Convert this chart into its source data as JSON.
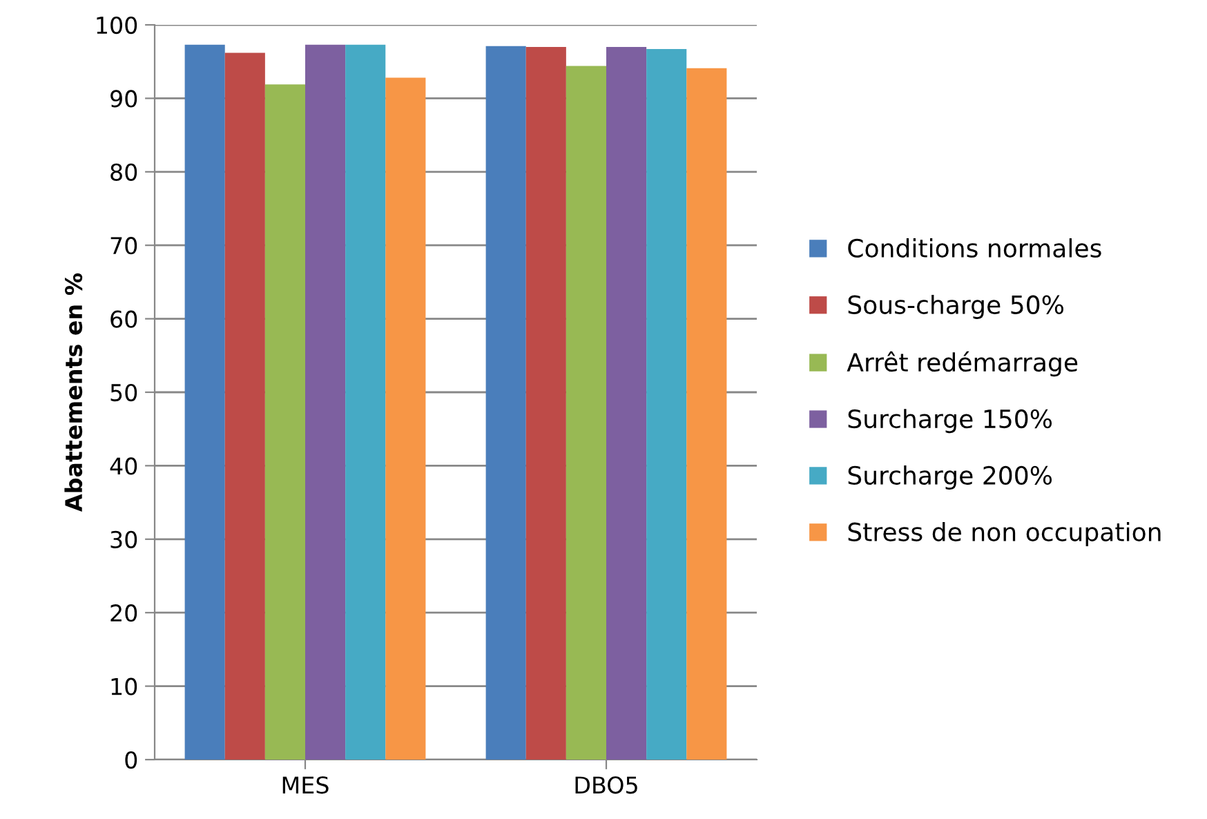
{
  "chart_data": {
    "type": "bar",
    "ylabel": "Abattements en %",
    "categories": [
      "MES",
      "DBO5"
    ],
    "series": [
      {
        "name": "Conditions normales",
        "color": "#4a7ebb",
        "values": [
          97.3,
          97.1
        ]
      },
      {
        "name": "Sous-charge 50%",
        "color": "#be4b48",
        "values": [
          96.2,
          97.0
        ]
      },
      {
        "name": "Arrêt redémarrage",
        "color": "#98b954",
        "values": [
          91.9,
          94.4
        ]
      },
      {
        "name": "Surcharge 150%",
        "color": "#7d60a0",
        "values": [
          97.3,
          97.0
        ]
      },
      {
        "name": "Surcharge 200%",
        "color": "#46aac5",
        "values": [
          97.3,
          96.7
        ]
      },
      {
        "name": "Stress de non occupation",
        "color": "#f79646",
        "values": [
          92.8,
          94.1
        ]
      }
    ],
    "ylim": [
      0,
      100
    ],
    "yticks": [
      0,
      10,
      20,
      30,
      40,
      50,
      60,
      70,
      80,
      90,
      100
    ],
    "grid": "y",
    "legend": "right"
  }
}
